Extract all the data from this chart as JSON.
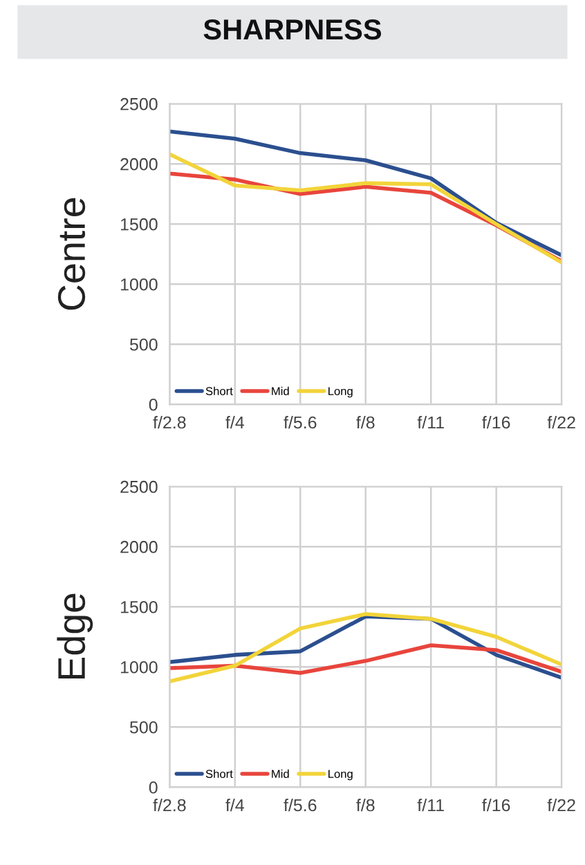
{
  "chart_data": [
    {
      "type": "line",
      "title": "SHARPNESS",
      "ylabel": "Centre",
      "categories": [
        "f/2.8",
        "f/4",
        "f/5.6",
        "f/8",
        "f/11",
        "f/16",
        "f/22"
      ],
      "ylim": [
        0,
        2500
      ],
      "yticks": [
        0,
        500,
        1000,
        1500,
        2000,
        2500
      ],
      "grid": true,
      "legend": "bottom left",
      "series": [
        {
          "name": "Short",
          "color": "#2b4f8f",
          "values": [
            2270,
            2210,
            2090,
            2030,
            1880,
            1510,
            1240
          ]
        },
        {
          "name": "Mid",
          "color": "#e8453c",
          "values": [
            1920,
            1870,
            1750,
            1810,
            1760,
            1490,
            1190
          ]
        },
        {
          "name": "Long",
          "color": "#f2d43a",
          "values": [
            2080,
            1820,
            1780,
            1840,
            1830,
            1500,
            1180
          ]
        }
      ]
    },
    {
      "type": "line",
      "ylabel": "Edge",
      "categories": [
        "f/2.8",
        "f/4",
        "f/5.6",
        "f/8",
        "f/11",
        "f/16",
        "f/22"
      ],
      "ylim": [
        0,
        2500
      ],
      "yticks": [
        0,
        500,
        1000,
        1500,
        2000,
        2500
      ],
      "grid": true,
      "legend": "bottom left",
      "series": [
        {
          "name": "Short",
          "color": "#2b4f8f",
          "values": [
            1040,
            1100,
            1130,
            1420,
            1400,
            1100,
            910
          ]
        },
        {
          "name": "Mid",
          "color": "#e8453c",
          "values": [
            990,
            1010,
            950,
            1050,
            1180,
            1140,
            960
          ]
        },
        {
          "name": "Long",
          "color": "#f2d43a",
          "values": [
            880,
            1010,
            1320,
            1440,
            1400,
            1250,
            1020
          ]
        }
      ]
    }
  ]
}
